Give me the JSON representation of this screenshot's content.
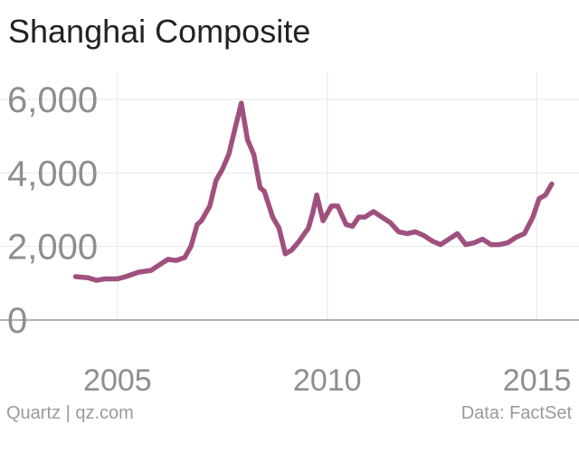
{
  "title": "Shanghai Composite",
  "footer": {
    "source_left": "Quartz | qz.com",
    "source_right": "Data: FactSet"
  },
  "colors": {
    "line": "#a0507f",
    "grid": "#e6e6e6",
    "axis": "#999999",
    "tick_text": "#8e8e8e",
    "title": "#222222"
  },
  "chart_data": {
    "type": "line",
    "title": "Shanghai Composite",
    "xlabel": "",
    "ylabel": "",
    "xlim": [
      2002.2,
      2016
    ],
    "ylim": [
      0,
      6000
    ],
    "x_ticks": [
      2005,
      2010,
      2015
    ],
    "x_tick_labels": [
      "2005",
      "2010",
      "2015"
    ],
    "y_ticks": [
      0,
      2000,
      4000,
      6000
    ],
    "y_tick_labels": [
      "0",
      "2,000",
      "4,000",
      "6,000"
    ],
    "grid": true,
    "legend": "none",
    "series": [
      {
        "x": [
          2004.0,
          2004.3,
          2004.5,
          2004.7,
          2005.0,
          2005.2,
          2005.5,
          2005.8,
          2006.0,
          2006.2,
          2006.4,
          2006.6,
          2006.75,
          2006.9,
          2007.0,
          2007.2,
          2007.35,
          2007.5,
          2007.65,
          2007.8,
          2007.95,
          2008.1,
          2008.25,
          2008.4,
          2008.5,
          2008.7,
          2008.85,
          2009.0,
          2009.15,
          2009.3,
          2009.55,
          2009.65,
          2009.75,
          2009.9,
          2010.1,
          2010.25,
          2010.45,
          2010.6,
          2010.75,
          2010.9,
          2011.1,
          2011.3,
          2011.5,
          2011.7,
          2011.9,
          2012.1,
          2012.3,
          2012.5,
          2012.7,
          2012.9,
          2013.1,
          2013.3,
          2013.5,
          2013.7,
          2013.9,
          2014.1,
          2014.3,
          2014.5,
          2014.7,
          2014.9,
          2015.05,
          2015.2,
          2015.35
        ],
        "values": [
          1180,
          1150,
          1080,
          1120,
          1120,
          1180,
          1300,
          1350,
          1500,
          1650,
          1620,
          1700,
          2000,
          2600,
          2700,
          3100,
          3800,
          4100,
          4500,
          5200,
          5900,
          4900,
          4500,
          3600,
          3500,
          2800,
          2500,
          1800,
          1900,
          2100,
          2500,
          2900,
          3400,
          2700,
          3100,
          3100,
          2600,
          2550,
          2800,
          2800,
          2950,
          2800,
          2650,
          2400,
          2350,
          2400,
          2300,
          2150,
          2050,
          2200,
          2350,
          2050,
          2100,
          2200,
          2050,
          2050,
          2100,
          2250,
          2350,
          2800,
          3300,
          3400,
          3700
        ]
      }
    ]
  }
}
